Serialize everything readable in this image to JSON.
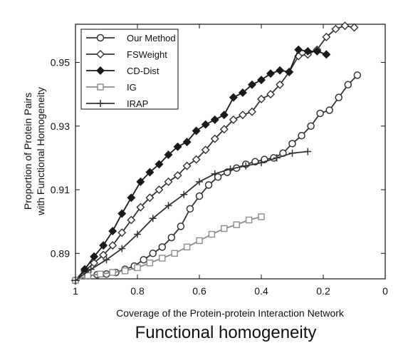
{
  "chart_data": {
    "type": "line",
    "caption": "Functional homogeneity",
    "xlabel": "Coverage of the Protein-protein Interaction Network",
    "ylabel": [
      "Proportion of Protein Pairs",
      "with Functional Homogeneity"
    ],
    "xlim": [
      1,
      0
    ],
    "ylim": [
      0.882,
      0.962
    ],
    "x_reversed": true,
    "x_ticks": [
      1,
      0.8,
      0.6,
      0.4,
      0.2,
      0
    ],
    "x_tick_labels": [
      "1",
      "0.8",
      "0.6",
      "0.4",
      "0.2",
      "0"
    ],
    "y_ticks": [
      0.89,
      0.91,
      0.93,
      0.95
    ],
    "y_tick_labels": [
      "0.89",
      "0.91",
      "0.93",
      "0.95"
    ],
    "grid": false,
    "legend_position": "top-left",
    "series": [
      {
        "name": "Our Method",
        "color": "#333333",
        "marker": "circle",
        "points": [
          [
            1.0,
            0.8815
          ],
          [
            0.96,
            0.883
          ],
          [
            0.93,
            0.8833
          ],
          [
            0.9,
            0.8835
          ],
          [
            0.87,
            0.884
          ],
          [
            0.84,
            0.885
          ],
          [
            0.81,
            0.886
          ],
          [
            0.78,
            0.888
          ],
          [
            0.75,
            0.89
          ],
          [
            0.72,
            0.892
          ],
          [
            0.69,
            0.895
          ],
          [
            0.66,
            0.8985
          ],
          [
            0.63,
            0.904
          ],
          [
            0.6,
            0.908
          ],
          [
            0.57,
            0.9115
          ],
          [
            0.54,
            0.914
          ],
          [
            0.51,
            0.9155
          ],
          [
            0.48,
            0.9168
          ],
          [
            0.45,
            0.918
          ],
          [
            0.42,
            0.9188
          ],
          [
            0.39,
            0.9195
          ],
          [
            0.36,
            0.92
          ],
          [
            0.33,
            0.9215
          ],
          [
            0.3,
            0.9245
          ],
          [
            0.27,
            0.927
          ],
          [
            0.24,
            0.93
          ],
          [
            0.21,
            0.934
          ],
          [
            0.18,
            0.935
          ],
          [
            0.15,
            0.939
          ],
          [
            0.12,
            0.943
          ],
          [
            0.09,
            0.946
          ]
        ]
      },
      {
        "name": "FSWeight",
        "color": "#333333",
        "marker": "diamond",
        "points": [
          [
            1.0,
            0.8815
          ],
          [
            0.97,
            0.8845
          ],
          [
            0.94,
            0.887
          ],
          [
            0.91,
            0.8895
          ],
          [
            0.88,
            0.8925
          ],
          [
            0.85,
            0.8965
          ],
          [
            0.82,
            0.9005
          ],
          [
            0.79,
            0.9045
          ],
          [
            0.76,
            0.9075
          ],
          [
            0.73,
            0.91
          ],
          [
            0.7,
            0.9125
          ],
          [
            0.67,
            0.9145
          ],
          [
            0.64,
            0.9175
          ],
          [
            0.61,
            0.9195
          ],
          [
            0.58,
            0.9225
          ],
          [
            0.55,
            0.926
          ],
          [
            0.52,
            0.929
          ],
          [
            0.49,
            0.932
          ],
          [
            0.46,
            0.9335
          ],
          [
            0.43,
            0.9345
          ],
          [
            0.4,
            0.9385
          ],
          [
            0.37,
            0.94
          ],
          [
            0.34,
            0.943
          ],
          [
            0.31,
            0.947
          ],
          [
            0.28,
            0.952
          ],
          [
            0.25,
            0.9525
          ],
          [
            0.22,
            0.954
          ],
          [
            0.19,
            0.958
          ],
          [
            0.16,
            0.9605
          ],
          [
            0.13,
            0.9615
          ],
          [
            0.1,
            0.961
          ]
        ]
      },
      {
        "name": "CD-Dist",
        "color": "#1a1a1a",
        "marker": "filled-diamond",
        "points": [
          [
            1.0,
            0.8815
          ],
          [
            0.97,
            0.885
          ],
          [
            0.94,
            0.889
          ],
          [
            0.91,
            0.8925
          ],
          [
            0.88,
            0.897
          ],
          [
            0.85,
            0.9025
          ],
          [
            0.82,
            0.9075
          ],
          [
            0.79,
            0.9125
          ],
          [
            0.76,
            0.9155
          ],
          [
            0.73,
            0.918
          ],
          [
            0.7,
            0.921
          ],
          [
            0.67,
            0.9235
          ],
          [
            0.64,
            0.925
          ],
          [
            0.61,
            0.9285
          ],
          [
            0.58,
            0.9305
          ],
          [
            0.55,
            0.932
          ],
          [
            0.52,
            0.9335
          ],
          [
            0.49,
            0.939
          ],
          [
            0.46,
            0.9405
          ],
          [
            0.43,
            0.943
          ],
          [
            0.4,
            0.9445
          ],
          [
            0.37,
            0.9465
          ],
          [
            0.34,
            0.9475
          ],
          [
            0.31,
            0.947
          ],
          [
            0.28,
            0.954
          ],
          [
            0.25,
            0.9535
          ],
          [
            0.22,
            0.9535
          ],
          [
            0.19,
            0.9525
          ]
        ]
      },
      {
        "name": "IG",
        "color": "#8c8c8c",
        "marker": "square",
        "points": [
          [
            1.0,
            0.8815
          ],
          [
            0.96,
            0.883
          ],
          [
            0.92,
            0.8835
          ],
          [
            0.88,
            0.884
          ],
          [
            0.84,
            0.8845
          ],
          [
            0.8,
            0.8855
          ],
          [
            0.76,
            0.887
          ],
          [
            0.72,
            0.8885
          ],
          [
            0.68,
            0.89
          ],
          [
            0.64,
            0.892
          ],
          [
            0.6,
            0.894
          ],
          [
            0.56,
            0.896
          ],
          [
            0.52,
            0.8978
          ],
          [
            0.48,
            0.899
          ],
          [
            0.44,
            0.9005
          ],
          [
            0.4,
            0.9015
          ]
        ]
      },
      {
        "name": "IRAP",
        "color": "#333333",
        "marker": "plus",
        "points": [
          [
            1.0,
            0.8815
          ],
          [
            0.95,
            0.885
          ],
          [
            0.9,
            0.888
          ],
          [
            0.85,
            0.8915
          ],
          [
            0.8,
            0.896
          ],
          [
            0.75,
            0.901
          ],
          [
            0.7,
            0.905
          ],
          [
            0.65,
            0.9085
          ],
          [
            0.6,
            0.9125
          ],
          [
            0.55,
            0.915
          ],
          [
            0.5,
            0.9165
          ],
          [
            0.45,
            0.9175
          ],
          [
            0.4,
            0.9185
          ],
          [
            0.35,
            0.92
          ],
          [
            0.3,
            0.9215
          ],
          [
            0.25,
            0.922
          ]
        ]
      }
    ]
  }
}
